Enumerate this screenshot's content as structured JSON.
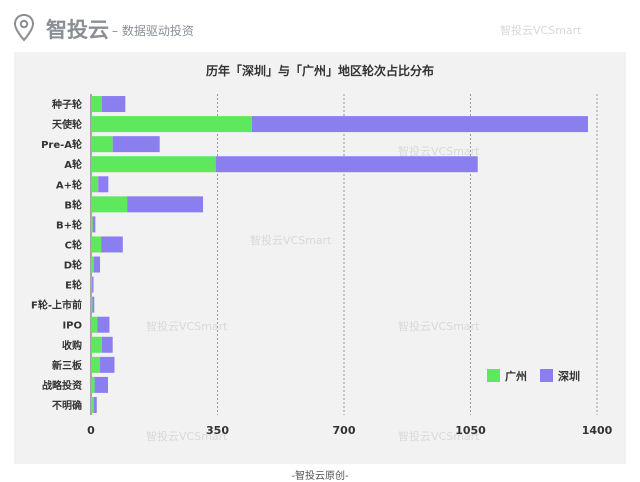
{
  "header": {
    "brand": "智投云",
    "tagline": "– 数据驱动投资",
    "watermark": "智投云VCSmart"
  },
  "footer": {
    "text": "-智投云原创-"
  },
  "colors": {
    "广州": "#5ee85e",
    "深圳": "#8b7ff0"
  },
  "chart_data": {
    "type": "bar",
    "orientation": "horizontal",
    "stacked": true,
    "title": "历年「深圳」与「广州」地区轮次占比分布",
    "categories": [
      "种子轮",
      "天使轮",
      "Pre-A轮",
      "A轮",
      "A+轮",
      "B轮",
      "B+轮",
      "C轮",
      "D轮",
      "E轮",
      "F轮-上市前",
      "IPO",
      "收购",
      "新三板",
      "战略投资",
      "不明确"
    ],
    "series": [
      {
        "name": "广州",
        "values": [
          30,
          445,
          60,
          345,
          20,
          100,
          5,
          28,
          8,
          3,
          4,
          18,
          30,
          25,
          10,
          8
        ]
      },
      {
        "name": "深圳",
        "values": [
          65,
          930,
          130,
          725,
          28,
          210,
          7,
          60,
          17,
          4,
          5,
          33,
          30,
          40,
          37,
          8
        ]
      }
    ],
    "xlim": [
      0,
      1400
    ],
    "xticks": [
      0,
      350,
      700,
      1050,
      1400
    ],
    "grid": true,
    "legend": "bottom-right"
  }
}
